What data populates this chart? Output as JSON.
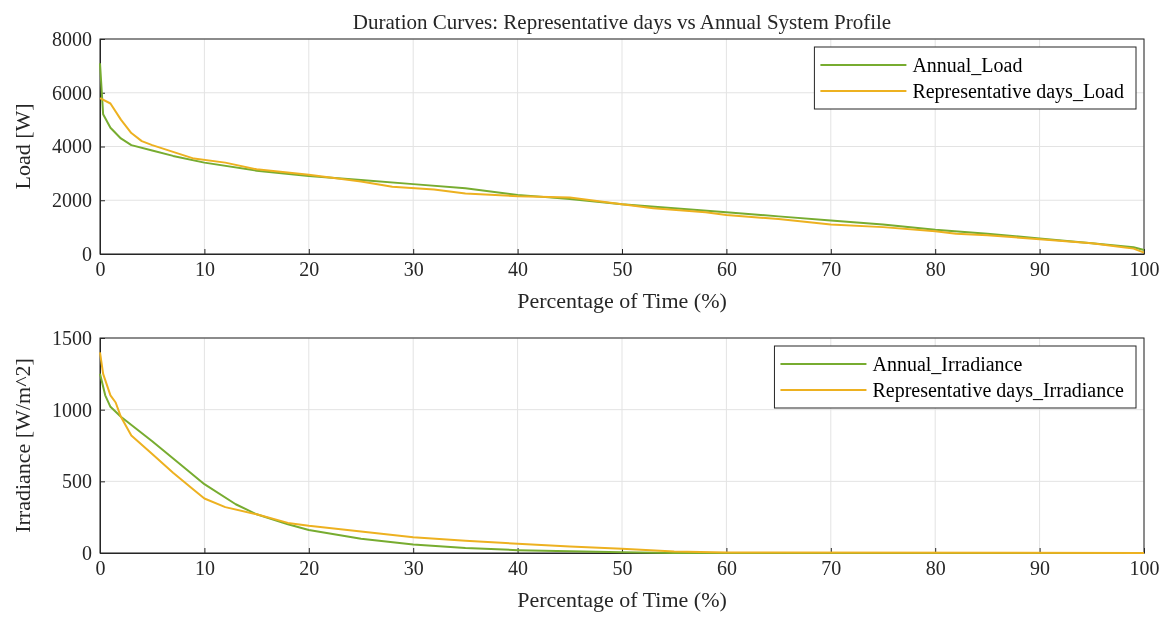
{
  "chart_data": [
    {
      "type": "line",
      "title": "Duration Curves: Representative days vs Annual System Profile",
      "xlabel": "Percentage of Time (%)",
      "ylabel": "Load [W]",
      "xlim": [
        0,
        100
      ],
      "xticks": [
        0,
        10,
        20,
        30,
        40,
        50,
        60,
        70,
        80,
        90,
        100
      ],
      "ylim": [
        0,
        8000
      ],
      "yticks": [
        0,
        2000,
        4000,
        6000,
        8000
      ],
      "grid": true,
      "legend": "top right",
      "series": [
        {
          "name": "Annual_Load",
          "color": "#77ac30",
          "x": [
            0,
            0.3,
            1,
            2,
            3,
            5,
            7,
            10,
            15,
            20,
            25,
            30,
            35,
            40,
            45,
            50,
            55,
            60,
            65,
            70,
            75,
            80,
            85,
            90,
            95,
            99,
            100
          ],
          "values": [
            7100,
            5200,
            4700,
            4300,
            4050,
            3850,
            3650,
            3400,
            3100,
            2900,
            2750,
            2600,
            2450,
            2200,
            2050,
            1850,
            1700,
            1550,
            1400,
            1250,
            1100,
            900,
            750,
            580,
            400,
            250,
            150
          ]
        },
        {
          "name": "Representative days_Load",
          "color": "#edb120",
          "x": [
            0,
            1,
            2,
            3,
            4,
            5,
            7,
            9,
            12,
            15,
            20,
            25,
            28,
            32,
            35,
            40,
            45,
            50,
            53,
            58,
            60,
            65,
            70,
            75,
            80,
            82,
            85,
            90,
            95,
            98,
            99,
            100
          ],
          "values": [
            5800,
            5600,
            5000,
            4500,
            4200,
            4050,
            3800,
            3550,
            3400,
            3150,
            2950,
            2700,
            2500,
            2400,
            2250,
            2150,
            2100,
            1850,
            1700,
            1550,
            1450,
            1300,
            1100,
            1000,
            850,
            750,
            700,
            550,
            400,
            250,
            200,
            50
          ]
        }
      ]
    },
    {
      "type": "line",
      "xlabel": "Percentage of Time (%)",
      "ylabel": "Irradiance [W/m^2]",
      "xlim": [
        0,
        100
      ],
      "xticks": [
        0,
        10,
        20,
        30,
        40,
        50,
        60,
        70,
        80,
        90,
        100
      ],
      "ylim": [
        0,
        1500
      ],
      "yticks": [
        0,
        500,
        1000,
        1500
      ],
      "grid": true,
      "legend": "top right",
      "series": [
        {
          "name": "Annual_Irradiance",
          "color": "#77ac30",
          "x": [
            0,
            0.5,
            1,
            2,
            5,
            8,
            10,
            13,
            15,
            18,
            20,
            25,
            30,
            35,
            40,
            45,
            50,
            55,
            100
          ],
          "values": [
            1250,
            1100,
            1020,
            950,
            780,
            600,
            480,
            340,
            270,
            200,
            160,
            100,
            60,
            35,
            20,
            12,
            5,
            0,
            0
          ]
        },
        {
          "name": "Representative days_Irradiance",
          "color": "#edb120",
          "x": [
            0,
            0.3,
            1,
            1.5,
            2,
            3,
            5,
            7,
            9,
            10,
            12,
            15,
            18,
            20,
            25,
            30,
            35,
            40,
            45,
            50,
            55,
            60,
            100
          ],
          "values": [
            1400,
            1250,
            1100,
            1050,
            950,
            820,
            690,
            560,
            440,
            380,
            320,
            270,
            210,
            190,
            150,
            110,
            85,
            65,
            45,
            30,
            10,
            3,
            0
          ]
        }
      ]
    }
  ]
}
